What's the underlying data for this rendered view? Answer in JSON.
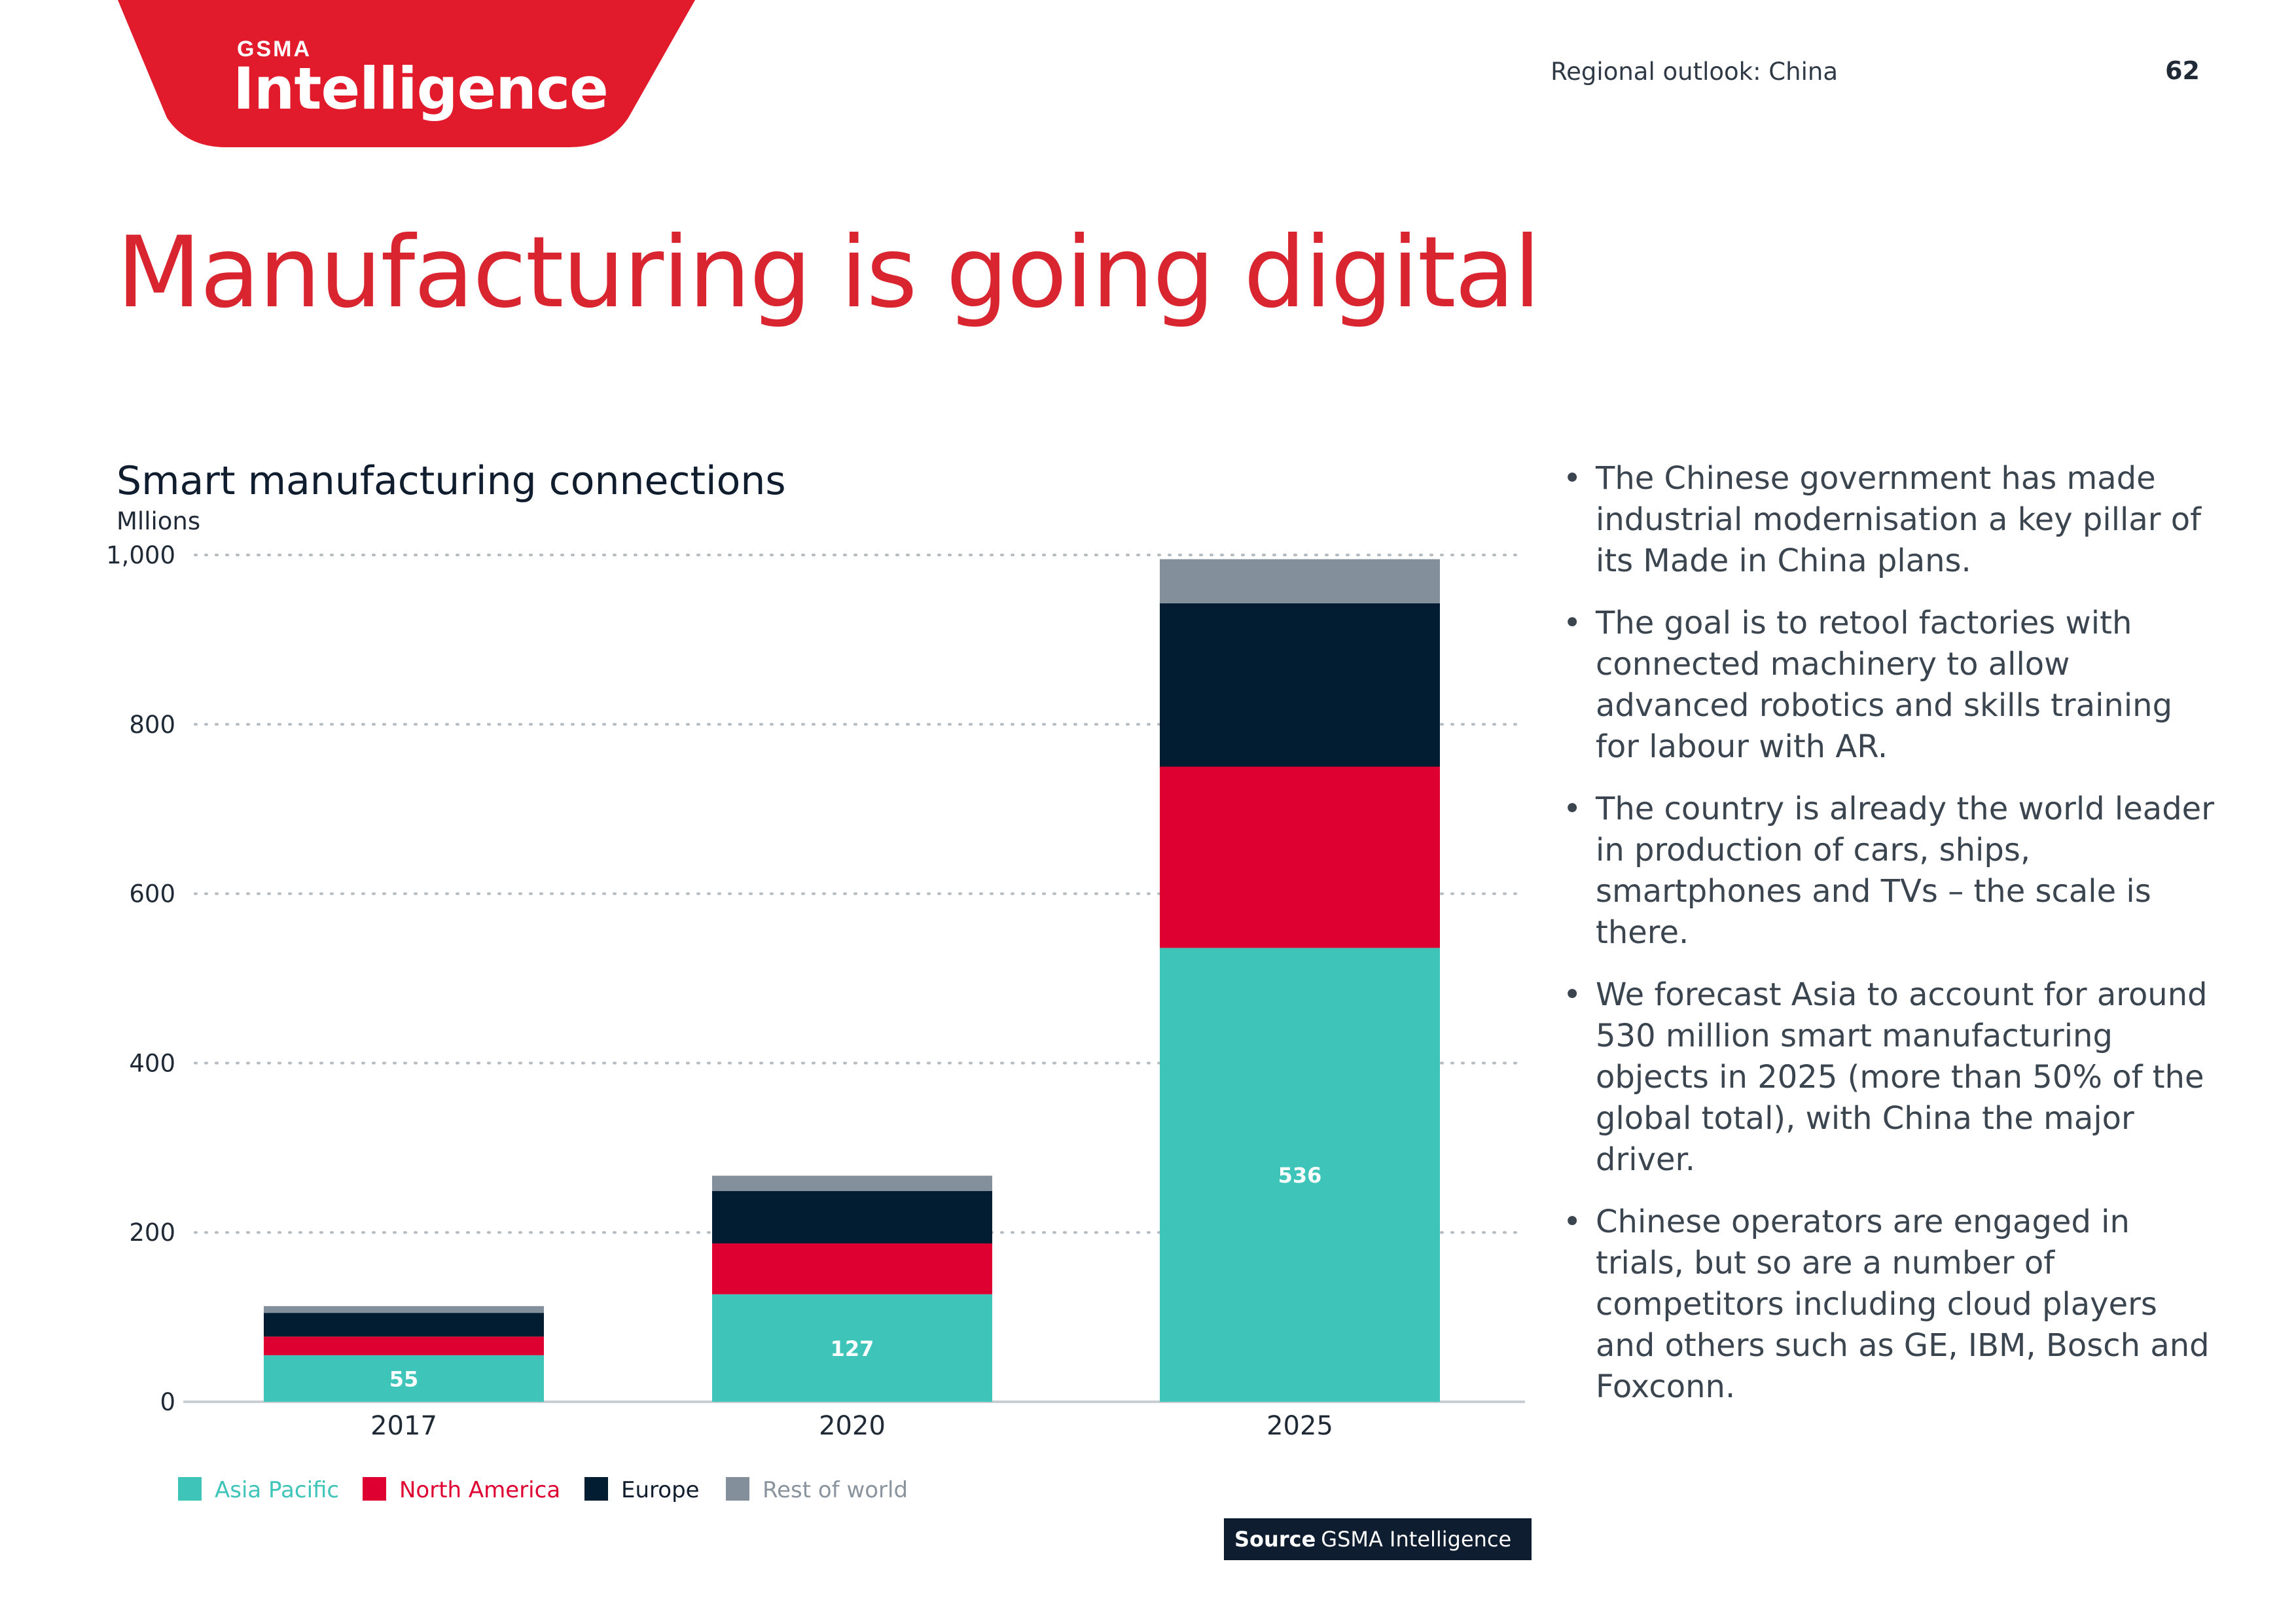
{
  "header": {
    "logo_small": "GSMA",
    "logo_big": "Intelligence",
    "section": "Regional outlook: China",
    "page_number": "62",
    "brand_color": "#e11b2c"
  },
  "page_title": "Manufacturing is going digital",
  "chart_data": {
    "type": "bar",
    "stacked": true,
    "title": "Smart manufacturing connections",
    "ylabel": "Mllions",
    "xlabel": "",
    "categories": [
      "2017",
      "2020",
      "2025"
    ],
    "ylim": [
      0,
      1000
    ],
    "yticks": [
      0,
      200,
      400,
      600,
      800,
      1000
    ],
    "ytick_labels": [
      "0",
      "200",
      "400",
      "600",
      "800",
      "1,000"
    ],
    "grid": "dotted horizontal",
    "legend_position": "bottom-left",
    "series": [
      {
        "name": "Asia Pacific",
        "color": "#3ec4b8",
        "values": [
          55,
          127,
          536
        ],
        "labels": [
          "55",
          "127",
          "536"
        ]
      },
      {
        "name": "North America",
        "color": "#de0030",
        "values": [
          22,
          60,
          214
        ],
        "labels": [
          "",
          "",
          ""
        ]
      },
      {
        "name": "Europe",
        "color": "#021d31",
        "values": [
          28,
          62,
          193
        ],
        "labels": [
          "",
          "",
          ""
        ]
      },
      {
        "name": "Rest of world",
        "color": "#838f9a",
        "values": [
          8,
          18,
          52
        ],
        "labels": [
          "",
          "",
          ""
        ]
      }
    ]
  },
  "source": {
    "label": "Source",
    "text": "GSMA Intelligence"
  },
  "bullets": [
    "The Chinese government has made industrial modernisation a key pillar of its Made in China plans.",
    "The goal is to retool factories with connected machinery to allow advanced robotics and skills training for labour with AR.",
    "The country is already the world leader in production of cars, ships, smartphones and TVs – the scale is there.",
    "We forecast Asia to account for around 530 million smart manufacturing objects in 2025 (more than 50% of the global total), with China the major driver.",
    "Chinese operators are engaged in trials, but so are a number of competitors including cloud players and others such as GE, IBM, Bosch and Foxconn."
  ]
}
